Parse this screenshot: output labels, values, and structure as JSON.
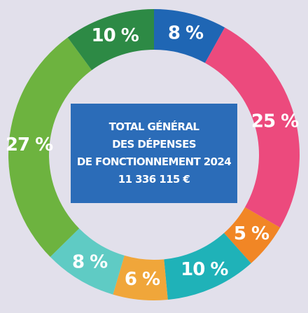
{
  "chart_data": {
    "type": "pie",
    "donut": true,
    "start": "top",
    "direction": "clockwise",
    "values": [
      8,
      25,
      5,
      10,
      6,
      8,
      27,
      10
    ],
    "labels": [
      "8 %",
      "25 %",
      "5 %",
      "10 %",
      "6 %",
      "8 %",
      "27 %",
      "10 %"
    ],
    "colors": [
      "#1f66b4",
      "#ec4a7d",
      "#f18625",
      "#1fb2b8",
      "#f0a63a",
      "#5fcbc4",
      "#6db33f",
      "#2d8a45"
    ],
    "center_text": [
      "TOTAL GÉNÉRAL",
      "DES DÉPENSES",
      "DE FONCTIONNEMENT 2024",
      "11 336 115 €"
    ]
  }
}
